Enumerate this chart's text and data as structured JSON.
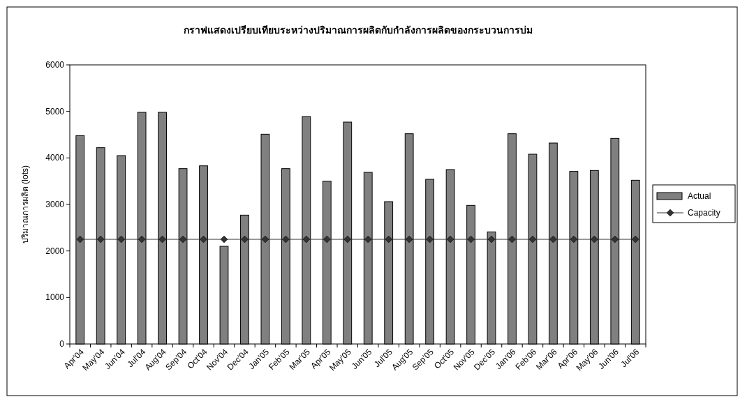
{
  "chart_data": {
    "type": "bar",
    "title": "กราฟแสดงเปรียบเทียบระหว่างปริมาณการผลิตกับกำลังการผลิตของกระบวนการบ่ม",
    "ylabel": "ปริมาณการผลิต (lots)",
    "categories": [
      "Apr'04",
      "May'04",
      "Jun'04",
      "Jul'04",
      "Aug'04",
      "Sep'04",
      "Oct'04",
      "Nov'04",
      "Dec'04",
      "Jan'05",
      "Feb'05",
      "Mar'05",
      "Apr'05",
      "May'05",
      "Jun'05",
      "Jul'05",
      "Aug'05",
      "Sep'05",
      "Oct'05",
      "Nov'05",
      "Dec'05",
      "Jan'06",
      "Feb'06",
      "Mar'06",
      "Apr'06",
      "May'06",
      "Jun'06",
      "Jul'06"
    ],
    "series": [
      {
        "name": "Actual",
        "color": "#808080",
        "values": [
          4480,
          4220,
          4050,
          4980,
          4980,
          3770,
          3830,
          2100,
          2770,
          4510,
          3770,
          4890,
          3500,
          4770,
          3690,
          3060,
          4520,
          3540,
          3750,
          2980,
          2410,
          4520,
          4080,
          4320,
          3710,
          3730,
          4420,
          3520
        ]
      },
      {
        "name": "Capacity",
        "type": "line",
        "color": "#333333",
        "marker": "diamond",
        "values": [
          2250,
          2250,
          2250,
          2250,
          2250,
          2250,
          2250,
          2250,
          2250,
          2250,
          2250,
          2250,
          2250,
          2250,
          2250,
          2250,
          2250,
          2250,
          2250,
          2250,
          2250,
          2250,
          2250,
          2250,
          2250,
          2250,
          2250,
          2250
        ]
      }
    ],
    "ylim": [
      0,
      6000
    ],
    "yticks": [
      0,
      1000,
      2000,
      3000,
      4000,
      5000,
      6000
    ],
    "legend": "right"
  }
}
